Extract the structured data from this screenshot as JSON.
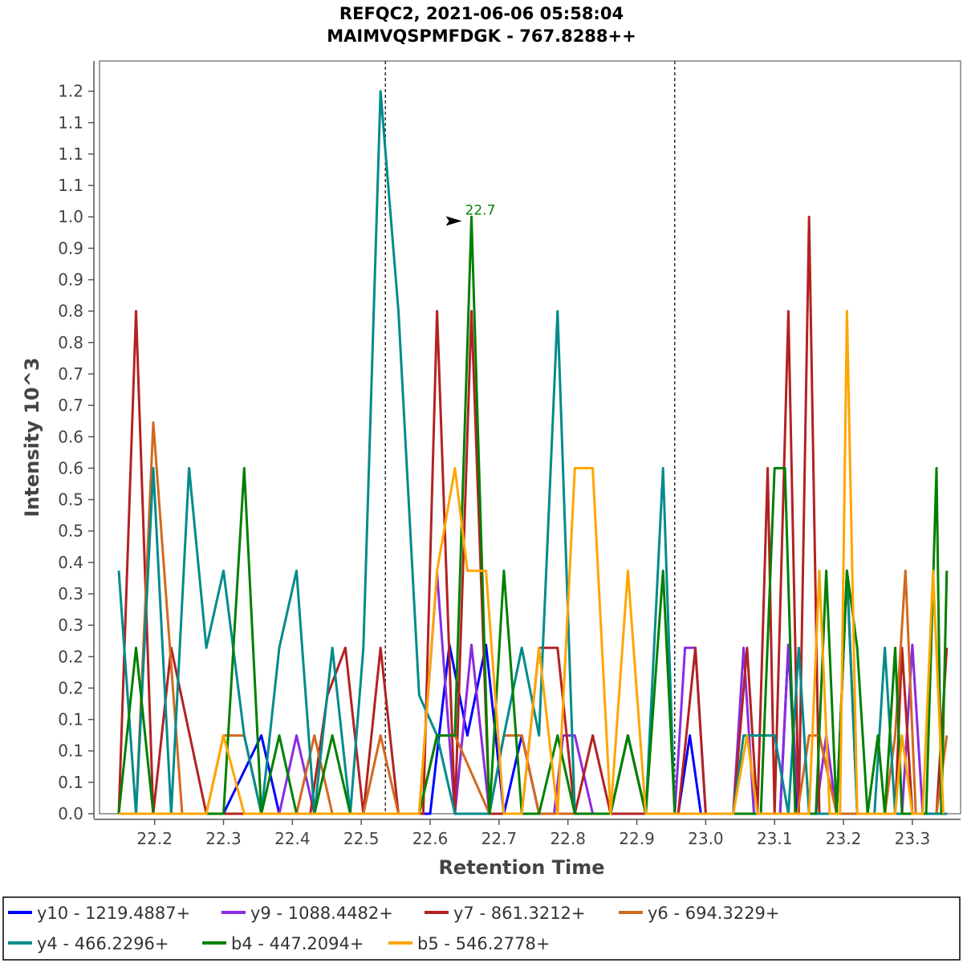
{
  "chart_data": {
    "type": "line",
    "title": "REFQC2, 2021-06-06 05:58:04",
    "subtitle": "MAIMVQSPMFDGK - 767.8288++",
    "xlabel": "Retention Time",
    "ylabel": "Intensity 10^3",
    "xlim": [
      22.12,
      23.37
    ],
    "ylim": [
      0,
      1.27
    ],
    "x_ticks": [
      22.2,
      22.3,
      22.4,
      22.5,
      22.6,
      22.7,
      22.8,
      22.9,
      23.0,
      23.1,
      23.2,
      23.3
    ],
    "x_tick_labels": [
      "22.2",
      "22.3",
      "22.4",
      "22.5",
      "22.6",
      "22.7",
      "22.8",
      "22.9",
      "23.0",
      "23.1",
      "23.2",
      "23.3"
    ],
    "y_ticks": [
      0,
      0.053,
      0.106,
      0.159,
      0.212,
      0.265,
      0.318,
      0.371,
      0.424,
      0.477,
      0.53,
      0.583,
      0.636,
      0.689,
      0.742,
      0.795,
      0.848,
      0.901,
      0.954,
      1.007,
      1.06,
      1.113,
      1.166,
      1.219
    ],
    "y_tick_labels": [
      "0.0",
      "0.1",
      "0.1",
      "0.1",
      "0.2",
      "0.2",
      "0.3",
      "0.3",
      "0.4",
      "0.5",
      "0.5",
      "0.6",
      "0.6",
      "0.7",
      "0.7",
      "0.8",
      "0.8",
      "0.9",
      "0.9",
      "1.0",
      "1.1",
      "1.1",
      "1.1",
      "1.2"
    ],
    "grid": false,
    "legend_position": "bottom",
    "vertical_markers": [
      22.535,
      22.955
    ],
    "annotation": {
      "text": "22.7",
      "x": 22.66,
      "y": 1.0
    },
    "series": [
      {
        "name": "y10 - 1219.4887+",
        "color": "#0000ff",
        "points": [
          [
            22.148,
            0
          ],
          [
            22.3,
            0
          ],
          [
            22.355,
            0.132
          ],
          [
            22.381,
            0
          ],
          [
            22.6,
            0
          ],
          [
            22.628,
            0.285
          ],
          [
            22.654,
            0.132
          ],
          [
            22.681,
            0.285
          ],
          [
            22.707,
            0
          ],
          [
            22.733,
            0.132
          ],
          [
            22.758,
            0
          ],
          [
            22.96,
            0
          ],
          [
            22.977,
            0.132
          ],
          [
            22.993,
            0
          ],
          [
            23.108,
            0
          ],
          [
            23.12,
            0.285
          ],
          [
            23.133,
            0
          ],
          [
            23.35,
            0
          ]
        ]
      },
      {
        "name": "y9 - 1088.4482+",
        "color": "#8a2be2",
        "points": [
          [
            22.148,
            0
          ],
          [
            22.355,
            0
          ],
          [
            22.381,
            0
          ],
          [
            22.406,
            0.132
          ],
          [
            22.432,
            0
          ],
          [
            22.584,
            0
          ],
          [
            22.61,
            0.406
          ],
          [
            22.636,
            0
          ],
          [
            22.66,
            0.285
          ],
          [
            22.686,
            0
          ],
          [
            22.78,
            0
          ],
          [
            22.793,
            0.132
          ],
          [
            22.81,
            0.132
          ],
          [
            22.836,
            0
          ],
          [
            22.955,
            0
          ],
          [
            22.97,
            0.28
          ],
          [
            22.985,
            0.28
          ],
          [
            23.0,
            0
          ],
          [
            23.04,
            0
          ],
          [
            23.055,
            0.28
          ],
          [
            23.07,
            0
          ],
          [
            23.108,
            0
          ],
          [
            23.12,
            0.285
          ],
          [
            23.135,
            0
          ],
          [
            23.16,
            0
          ],
          [
            23.175,
            0.132
          ],
          [
            23.19,
            0
          ],
          [
            23.285,
            0
          ],
          [
            23.3,
            0.285
          ],
          [
            23.315,
            0
          ],
          [
            23.35,
            0
          ]
        ]
      },
      {
        "name": "y7 - 861.3212+",
        "color": "#b22222",
        "points": [
          [
            22.148,
            0
          ],
          [
            22.173,
            0.848
          ],
          [
            22.198,
            0
          ],
          [
            22.224,
            0.28
          ],
          [
            22.275,
            0
          ],
          [
            22.426,
            0
          ],
          [
            22.451,
            0.2
          ],
          [
            22.477,
            0.28
          ],
          [
            22.503,
            0
          ],
          [
            22.528,
            0.28
          ],
          [
            22.554,
            0
          ],
          [
            22.59,
            0
          ],
          [
            22.61,
            0.848
          ],
          [
            22.636,
            0
          ],
          [
            22.66,
            0.848
          ],
          [
            22.686,
            0
          ],
          [
            22.733,
            0
          ],
          [
            22.758,
            0.28
          ],
          [
            22.785,
            0.28
          ],
          [
            22.81,
            0
          ],
          [
            22.836,
            0.132
          ],
          [
            22.862,
            0
          ],
          [
            22.96,
            0
          ],
          [
            22.985,
            0.28
          ],
          [
            23.0,
            0
          ],
          [
            23.04,
            0
          ],
          [
            23.06,
            0.28
          ],
          [
            23.075,
            0
          ],
          [
            23.09,
            0.583
          ],
          [
            23.1,
            0
          ],
          [
            23.12,
            0.848
          ],
          [
            23.135,
            0
          ],
          [
            23.15,
            1.007
          ],
          [
            23.165,
            0
          ],
          [
            23.19,
            0
          ],
          [
            23.205,
            0.41
          ],
          [
            23.22,
            0
          ],
          [
            23.275,
            0
          ],
          [
            23.285,
            0.28
          ],
          [
            23.3,
            0
          ],
          [
            23.335,
            0
          ],
          [
            23.35,
            0.28
          ]
        ]
      },
      {
        "name": "y6 - 694.3229+",
        "color": "#d2691e",
        "points": [
          [
            22.148,
            0
          ],
          [
            22.173,
            0
          ],
          [
            22.198,
            0.66
          ],
          [
            22.24,
            0
          ],
          [
            22.275,
            0
          ],
          [
            22.3,
            0.132
          ],
          [
            22.33,
            0.132
          ],
          [
            22.355,
            0
          ],
          [
            22.406,
            0
          ],
          [
            22.432,
            0.132
          ],
          [
            22.458,
            0
          ],
          [
            22.503,
            0
          ],
          [
            22.528,
            0.132
          ],
          [
            22.554,
            0
          ],
          [
            22.584,
            0
          ],
          [
            22.61,
            0.132
          ],
          [
            22.636,
            0.132
          ],
          [
            22.686,
            0
          ],
          [
            22.707,
            0.132
          ],
          [
            22.733,
            0.132
          ],
          [
            22.758,
            0
          ],
          [
            22.862,
            0
          ],
          [
            22.887,
            0.132
          ],
          [
            22.913,
            0
          ],
          [
            23.133,
            0
          ],
          [
            23.15,
            0.132
          ],
          [
            23.165,
            0.132
          ],
          [
            23.19,
            0
          ],
          [
            23.26,
            0
          ],
          [
            23.275,
            0.132
          ],
          [
            23.29,
            0.41
          ],
          [
            23.305,
            0
          ],
          [
            23.335,
            0
          ],
          [
            23.35,
            0.132
          ]
        ]
      },
      {
        "name": "y4 - 466.2296+",
        "color": "#008b8b",
        "points": [
          [
            22.148,
            0.41
          ],
          [
            22.173,
            0
          ],
          [
            22.198,
            0.583
          ],
          [
            22.224,
            0
          ],
          [
            22.25,
            0.583
          ],
          [
            22.275,
            0.28
          ],
          [
            22.3,
            0.41
          ],
          [
            22.33,
            0.132
          ],
          [
            22.355,
            0
          ],
          [
            22.381,
            0.28
          ],
          [
            22.406,
            0.41
          ],
          [
            22.432,
            0
          ],
          [
            22.458,
            0.28
          ],
          [
            22.484,
            0
          ],
          [
            22.503,
            0.28
          ],
          [
            22.528,
            1.219
          ],
          [
            22.554,
            0.848
          ],
          [
            22.584,
            0.2
          ],
          [
            22.61,
            0.132
          ],
          [
            22.636,
            0
          ],
          [
            22.66,
            0
          ],
          [
            22.686,
            0
          ],
          [
            22.707,
            0.132
          ],
          [
            22.733,
            0.28
          ],
          [
            22.758,
            0.132
          ],
          [
            22.785,
            0.848
          ],
          [
            22.81,
            0
          ],
          [
            22.862,
            0
          ],
          [
            22.887,
            0.132
          ],
          [
            22.913,
            0
          ],
          [
            22.938,
            0.583
          ],
          [
            22.955,
            0
          ],
          [
            23.04,
            0
          ],
          [
            23.055,
            0.132
          ],
          [
            23.08,
            0.132
          ],
          [
            23.1,
            0.132
          ],
          [
            23.12,
            0
          ],
          [
            23.135,
            0.28
          ],
          [
            23.15,
            0
          ],
          [
            23.19,
            0
          ],
          [
            23.205,
            0.41
          ],
          [
            23.22,
            0
          ],
          [
            23.245,
            0
          ],
          [
            23.26,
            0.28
          ],
          [
            23.275,
            0
          ],
          [
            23.35,
            0
          ]
        ]
      },
      {
        "name": "b4 - 447.2094+",
        "color": "#008000",
        "points": [
          [
            22.148,
            0
          ],
          [
            22.173,
            0.28
          ],
          [
            22.198,
            0
          ],
          [
            22.3,
            0
          ],
          [
            22.33,
            0.583
          ],
          [
            22.355,
            0
          ],
          [
            22.381,
            0.132
          ],
          [
            22.406,
            0
          ],
          [
            22.432,
            0
          ],
          [
            22.458,
            0.132
          ],
          [
            22.484,
            0
          ],
          [
            22.584,
            0
          ],
          [
            22.61,
            0.132
          ],
          [
            22.636,
            0.132
          ],
          [
            22.66,
            1.007
          ],
          [
            22.686,
            0
          ],
          [
            22.707,
            0.41
          ],
          [
            22.733,
            0
          ],
          [
            22.758,
            0
          ],
          [
            22.785,
            0.132
          ],
          [
            22.81,
            0
          ],
          [
            22.862,
            0
          ],
          [
            22.887,
            0.132
          ],
          [
            22.913,
            0
          ],
          [
            22.938,
            0.41
          ],
          [
            22.955,
            0
          ],
          [
            23.08,
            0
          ],
          [
            23.1,
            0.583
          ],
          [
            23.115,
            0.583
          ],
          [
            23.13,
            0
          ],
          [
            23.16,
            0
          ],
          [
            23.175,
            0.41
          ],
          [
            23.19,
            0
          ],
          [
            23.205,
            0.41
          ],
          [
            23.22,
            0.28
          ],
          [
            23.235,
            0
          ],
          [
            23.25,
            0.132
          ],
          [
            23.26,
            0
          ],
          [
            23.275,
            0.28
          ],
          [
            23.285,
            0
          ],
          [
            23.32,
            0
          ],
          [
            23.335,
            0.583
          ],
          [
            23.342,
            0
          ],
          [
            23.35,
            0.41
          ]
        ]
      },
      {
        "name": "b5 - 546.2778+",
        "color": "#ffa500",
        "points": [
          [
            22.148,
            0
          ],
          [
            22.275,
            0
          ],
          [
            22.3,
            0.132
          ],
          [
            22.33,
            0
          ],
          [
            22.584,
            0
          ],
          [
            22.61,
            0.41
          ],
          [
            22.636,
            0.583
          ],
          [
            22.654,
            0.41
          ],
          [
            22.681,
            0.41
          ],
          [
            22.707,
            0
          ],
          [
            22.733,
            0
          ],
          [
            22.758,
            0.28
          ],
          [
            22.785,
            0
          ],
          [
            22.81,
            0.583
          ],
          [
            22.836,
            0.583
          ],
          [
            22.862,
            0
          ],
          [
            22.887,
            0.41
          ],
          [
            22.913,
            0
          ],
          [
            23.04,
            0
          ],
          [
            23.06,
            0.132
          ],
          [
            23.075,
            0
          ],
          [
            23.15,
            0
          ],
          [
            23.165,
            0.41
          ],
          [
            23.18,
            0
          ],
          [
            23.195,
            0
          ],
          [
            23.205,
            0.848
          ],
          [
            23.22,
            0
          ],
          [
            23.275,
            0
          ],
          [
            23.285,
            0.132
          ],
          [
            23.3,
            0
          ],
          [
            23.315,
            0
          ],
          [
            23.33,
            0.41
          ],
          [
            23.345,
            0
          ]
        ]
      }
    ]
  }
}
